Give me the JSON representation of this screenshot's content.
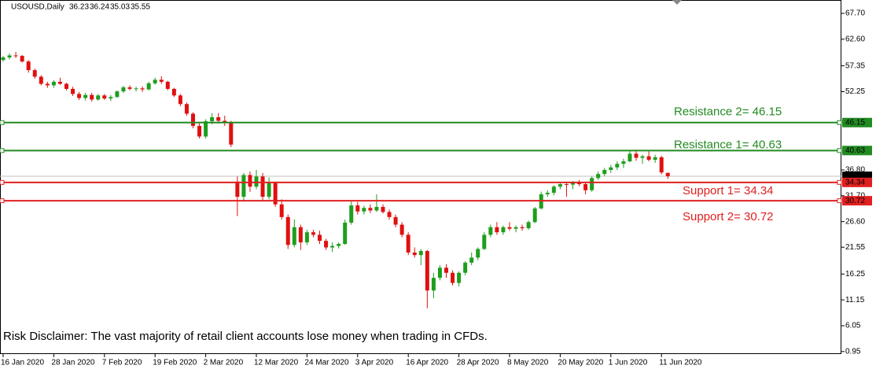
{
  "chart_data": {
    "type": "candlestick",
    "title": "USOUSD,Daily",
    "categories": [
      "16 Jan 2020",
      null,
      null,
      null,
      null,
      null,
      null,
      null,
      "28 Jan 2020",
      null,
      null,
      null,
      null,
      null,
      null,
      null,
      "7 Feb 2020",
      null,
      null,
      null,
      null,
      null,
      null,
      null,
      "19 Feb 2020",
      null,
      null,
      null,
      null,
      null,
      null,
      null,
      "2 Mar 2020",
      null,
      null,
      null,
      null,
      null,
      null,
      null,
      "12 Mar 2020",
      null,
      null,
      null,
      null,
      null,
      null,
      null,
      "24 Mar 2020",
      null,
      null,
      null,
      null,
      null,
      null,
      null,
      "3 Apr 2020",
      null,
      null,
      null,
      null,
      null,
      null,
      null,
      "16 Apr 2020",
      null,
      null,
      null,
      null,
      null,
      null,
      null,
      "28 Apr 2020",
      null,
      null,
      null,
      null,
      null,
      null,
      null,
      "8 May 2020",
      null,
      null,
      null,
      null,
      null,
      null,
      null,
      "20 May 2020",
      null,
      null,
      null,
      null,
      null,
      null,
      null,
      "1 Jun 2020",
      null,
      null,
      null,
      null,
      null,
      null,
      null,
      "11 Jun 2020",
      null
    ],
    "open": [
      58.5,
      59.0,
      59.4,
      59.3,
      58.2,
      56.5,
      55.2,
      53.8,
      53.5,
      54.2,
      53.8,
      52.8,
      51.8,
      51.0,
      51.6,
      50.7,
      51.5,
      50.9,
      51.2,
      52.3,
      53.1,
      52.8,
      52.9,
      52.7,
      53.9,
      54.6,
      54.2,
      52.8,
      51.5,
      49.8,
      47.9,
      45.5,
      43.4,
      46.4,
      47.2,
      46.5,
      46.2,
      34.5,
      31.5,
      35.8,
      33.5,
      35.5,
      31.5,
      34.2,
      30.0,
      27.5,
      22.0,
      25.5,
      22.5,
      24.5,
      24.0,
      22.8,
      21.5,
      21.8,
      22.2,
      26.4,
      29.8,
      28.6,
      29.3,
      28.8,
      29.5,
      28.5,
      27.5,
      26.0,
      24.0,
      20.5,
      20.0,
      20.8,
      13.0,
      15.5,
      17.5,
      16.5,
      14.5,
      16.5,
      18.5,
      19.5,
      21.2,
      24.0,
      25.5,
      24.5,
      25.5,
      25.2,
      25.5,
      25.3,
      26.5,
      29.2,
      32.0,
      32.3,
      33.5,
      34.0,
      33.9,
      34.3,
      34.0,
      32.8,
      35.2,
      36.0,
      36.8,
      37.3,
      38.0,
      38.5,
      40.0,
      39.2,
      39.5,
      38.8,
      39.3,
      36.23
    ],
    "high": [
      59.3,
      59.8,
      60.1,
      59.5,
      58.5,
      56.8,
      55.5,
      54.2,
      54.5,
      55.0,
      54.0,
      53.2,
      52.2,
      52.0,
      52.0,
      51.8,
      51.8,
      51.6,
      52.5,
      53.4,
      53.5,
      53.2,
      53.3,
      54.2,
      55.0,
      55.3,
      54.4,
      53.0,
      51.8,
      50.1,
      48.2,
      46.0,
      46.8,
      48.0,
      48.0,
      47.5,
      46.5,
      35.5,
      36.2,
      36.5,
      36.8,
      36.2,
      35.3,
      34.5,
      31.0,
      28.0,
      27.0,
      26.0,
      25.0,
      25.0,
      24.8,
      23.2,
      22.5,
      22.5,
      27.0,
      30.8,
      30.5,
      29.7,
      30.0,
      32.0,
      30.0,
      29.0,
      28.0,
      26.5,
      24.5,
      21.5,
      21.2,
      21.0,
      16.5,
      18.0,
      18.2,
      17.0,
      16.8,
      18.8,
      20.5,
      21.5,
      24.5,
      26.0,
      26.5,
      25.8,
      26.5,
      25.8,
      26.0,
      26.8,
      29.5,
      32.5,
      32.8,
      33.8,
      34.2,
      34.5,
      34.6,
      34.8,
      34.5,
      35.5,
      36.5,
      37.2,
      37.8,
      38.5,
      39.0,
      40.6,
      40.8,
      39.8,
      40.5,
      39.8,
      39.6,
      36.24
    ],
    "low": [
      58.2,
      58.6,
      58.9,
      58.0,
      56.0,
      54.8,
      53.5,
      53.0,
      53.0,
      53.6,
      52.5,
      51.4,
      50.6,
      50.5,
      50.3,
      50.5,
      50.6,
      50.4,
      51.0,
      52.0,
      52.5,
      52.3,
      52.2,
      52.5,
      53.6,
      53.8,
      52.5,
      51.2,
      49.4,
      47.5,
      45.0,
      43.0,
      43.0,
      45.8,
      46.0,
      45.5,
      41.3,
      27.7,
      30.5,
      32.5,
      33.0,
      30.8,
      31.0,
      29.5,
      27.0,
      21.2,
      21.5,
      21.0,
      22.0,
      23.5,
      22.2,
      21.0,
      20.6,
      21.3,
      22.0,
      26.0,
      28.0,
      28.0,
      28.3,
      28.5,
      28.2,
      27.0,
      25.5,
      23.5,
      20.0,
      19.5,
      18.0,
      9.5,
      11.5,
      15.0,
      15.5,
      14.0,
      13.8,
      16.0,
      18.0,
      19.0,
      21.0,
      23.5,
      24.0,
      24.0,
      24.8,
      24.5,
      24.8,
      25.0,
      26.3,
      29.0,
      31.5,
      31.8,
      33.0,
      31.5,
      33.0,
      33.6,
      32.0,
      32.5,
      34.8,
      35.6,
      36.2,
      36.8,
      37.2,
      38.3,
      38.6,
      38.0,
      38.5,
      38.2,
      35.9,
      35.03
    ],
    "close": [
      59.0,
      59.4,
      59.3,
      58.2,
      56.5,
      55.2,
      53.8,
      53.5,
      54.2,
      53.8,
      52.8,
      51.8,
      51.0,
      51.6,
      50.7,
      51.5,
      50.9,
      51.2,
      52.3,
      53.1,
      52.8,
      52.9,
      52.7,
      53.9,
      54.6,
      54.2,
      52.8,
      51.5,
      49.8,
      47.9,
      45.5,
      43.4,
      46.4,
      47.2,
      46.5,
      46.2,
      41.8,
      31.5,
      35.8,
      33.5,
      35.5,
      31.5,
      34.2,
      30.0,
      27.5,
      22.0,
      25.5,
      22.5,
      24.5,
      24.0,
      22.8,
      21.5,
      21.8,
      22.2,
      26.4,
      29.8,
      28.6,
      29.3,
      28.8,
      29.5,
      28.5,
      27.5,
      26.0,
      24.0,
      20.5,
      20.0,
      20.8,
      13.0,
      15.5,
      17.5,
      16.5,
      14.5,
      16.5,
      18.5,
      19.5,
      21.2,
      24.0,
      25.5,
      24.5,
      25.5,
      25.2,
      25.5,
      25.3,
      26.5,
      29.2,
      32.0,
      32.3,
      33.5,
      34.0,
      33.9,
      34.3,
      34.0,
      32.8,
      35.2,
      36.0,
      36.8,
      37.3,
      38.0,
      38.5,
      40.0,
      39.2,
      39.5,
      38.8,
      39.3,
      36.3,
      35.55
    ],
    "up_color": "#1e9e1e",
    "down_color": "#e01010",
    "ylim": [
      0.46,
      70.34
    ],
    "yticks": [
      {
        "value": 67.7,
        "label": "67.70"
      },
      {
        "value": 62.6,
        "label": "62.60"
      },
      57.35,
      52.25,
      {
        "value": 36.8,
        "label": "36.80"
      },
      {
        "value": 31.7,
        "label": "31.70"
      },
      {
        "value": 26.6,
        "label": "26.60"
      },
      21.55,
      16.25,
      11.15,
      6.05,
      0.95
    ],
    "levels": [
      {
        "label": "Resistance 2= 46.15",
        "value": 46.15,
        "color": "#228b22"
      },
      {
        "label": "Resistance 1= 40.63",
        "value": 40.63,
        "color": "#228b22"
      },
      {
        "label": "Support 1= 34.34",
        "value": 34.34,
        "color": "#e02020"
      },
      {
        "label": "Support 2= 30.72",
        "value": 30.72,
        "color": "#e02020"
      }
    ],
    "annotation": "Risk Disclaimer: The vast majority of retail client accounts lose money when trading in CFDs."
  }
}
